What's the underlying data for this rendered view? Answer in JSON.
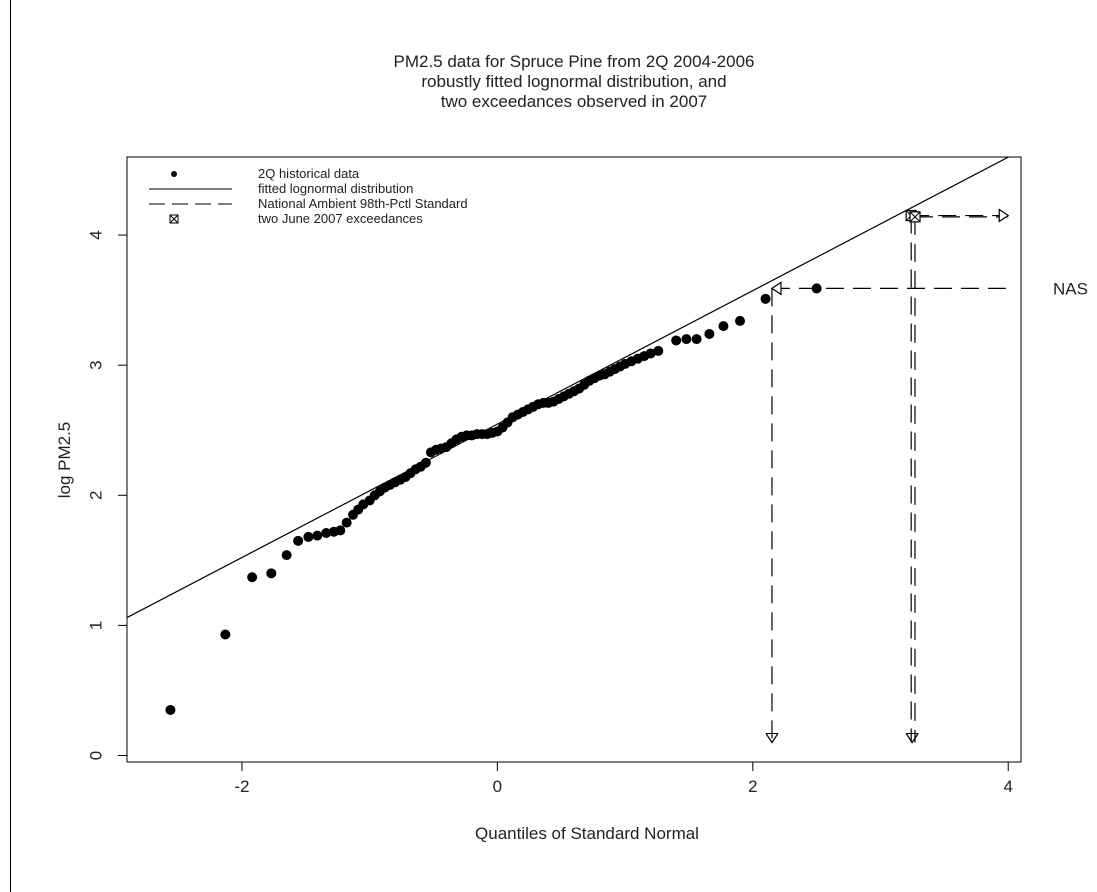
{
  "chart_data": {
    "type": "scatter",
    "title": "PM2.5 data for Spruce Pine from 2Q 2004-2006",
    "subtitle_lines": [
      "robustly fitted lognormal distribution, and",
      "two exceedances observed in 2007"
    ],
    "xlabel": "Quantiles of Standard Normal",
    "ylabel": "log PM2.5",
    "xlim": [
      -2.9,
      4.1
    ],
    "ylim": [
      -0.05,
      4.6
    ],
    "x_ticks": [
      -2,
      0,
      2,
      4
    ],
    "x_tick_labels": [
      "-2",
      "0",
      "2",
      "4"
    ],
    "y_ticks": [
      0,
      1,
      2,
      3,
      4
    ],
    "y_tick_labels": [
      "0",
      "1",
      "2",
      "3",
      "4"
    ],
    "legend": {
      "placement": "top-left",
      "entries": [
        {
          "label": "2Q historical data",
          "symbol": "dot"
        },
        {
          "label": "fitted lognormal distribution",
          "symbol": "solid-line"
        },
        {
          "label": "National Ambient 98th-Pctl Standard",
          "symbol": "dashed-line"
        },
        {
          "label": "two June 2007 exceedances",
          "symbol": "boxed-x"
        }
      ]
    },
    "annotations": [
      {
        "text": "NAS",
        "y": 3.59
      }
    ],
    "fitted_line": {
      "points": [
        [
          -2.9,
          1.06
        ],
        [
          4.1,
          4.65
        ]
      ]
    },
    "nas_standard": {
      "x": 2.15,
      "y": 3.59,
      "x_end": 4.0,
      "y_bottom": 0.1
    },
    "exceedances": [
      {
        "x": 3.24,
        "y": 4.15
      },
      {
        "x": 3.27,
        "y": 4.14
      }
    ],
    "exceedance_arrow_end_x": 4.0,
    "series": [
      {
        "name": "2Q historical data",
        "points": [
          [
            -2.56,
            0.35
          ],
          [
            -2.13,
            0.93
          ],
          [
            -1.92,
            1.37
          ],
          [
            -1.77,
            1.4
          ],
          [
            -1.65,
            1.54
          ],
          [
            -1.56,
            1.65
          ],
          [
            -1.48,
            1.68
          ],
          [
            -1.41,
            1.69
          ],
          [
            -1.34,
            1.71
          ],
          [
            -1.28,
            1.72
          ],
          [
            -1.23,
            1.73
          ],
          [
            -1.18,
            1.79
          ],
          [
            -1.13,
            1.85
          ],
          [
            -1.09,
            1.89
          ],
          [
            -1.05,
            1.93
          ],
          [
            -1.0,
            1.96
          ],
          [
            -0.96,
            2.0
          ],
          [
            -0.92,
            2.03
          ],
          [
            -0.88,
            2.06
          ],
          [
            -0.84,
            2.08
          ],
          [
            -0.8,
            2.1
          ],
          [
            -0.76,
            2.12
          ],
          [
            -0.72,
            2.14
          ],
          [
            -0.68,
            2.17
          ],
          [
            -0.64,
            2.2
          ],
          [
            -0.6,
            2.22
          ],
          [
            -0.56,
            2.25
          ],
          [
            -0.52,
            2.33
          ],
          [
            -0.48,
            2.35
          ],
          [
            -0.44,
            2.36
          ],
          [
            -0.4,
            2.37
          ],
          [
            -0.36,
            2.4
          ],
          [
            -0.32,
            2.43
          ],
          [
            -0.28,
            2.45
          ],
          [
            -0.24,
            2.46
          ],
          [
            -0.2,
            2.46
          ],
          [
            -0.16,
            2.47
          ],
          [
            -0.12,
            2.47
          ],
          [
            -0.08,
            2.47
          ],
          [
            -0.04,
            2.48
          ],
          [
            0.0,
            2.49
          ],
          [
            0.04,
            2.52
          ],
          [
            0.08,
            2.56
          ],
          [
            0.12,
            2.6
          ],
          [
            0.16,
            2.62
          ],
          [
            0.2,
            2.64
          ],
          [
            0.24,
            2.66
          ],
          [
            0.28,
            2.68
          ],
          [
            0.32,
            2.7
          ],
          [
            0.36,
            2.71
          ],
          [
            0.4,
            2.71
          ],
          [
            0.44,
            2.72
          ],
          [
            0.48,
            2.74
          ],
          [
            0.52,
            2.76
          ],
          [
            0.56,
            2.78
          ],
          [
            0.6,
            2.8
          ],
          [
            0.64,
            2.82
          ],
          [
            0.68,
            2.85
          ],
          [
            0.72,
            2.88
          ],
          [
            0.76,
            2.9
          ],
          [
            0.8,
            2.92
          ],
          [
            0.84,
            2.93
          ],
          [
            0.88,
            2.95
          ],
          [
            0.92,
            2.97
          ],
          [
            0.96,
            2.99
          ],
          [
            1.0,
            3.01
          ],
          [
            1.05,
            3.03
          ],
          [
            1.1,
            3.05
          ],
          [
            1.15,
            3.07
          ],
          [
            1.2,
            3.09
          ],
          [
            1.26,
            3.11
          ],
          [
            1.4,
            3.19
          ],
          [
            1.48,
            3.2
          ],
          [
            1.56,
            3.2
          ],
          [
            1.66,
            3.24
          ],
          [
            1.77,
            3.3
          ],
          [
            1.9,
            3.34
          ],
          [
            2.1,
            3.51
          ],
          [
            2.5,
            3.59
          ]
        ]
      }
    ]
  }
}
